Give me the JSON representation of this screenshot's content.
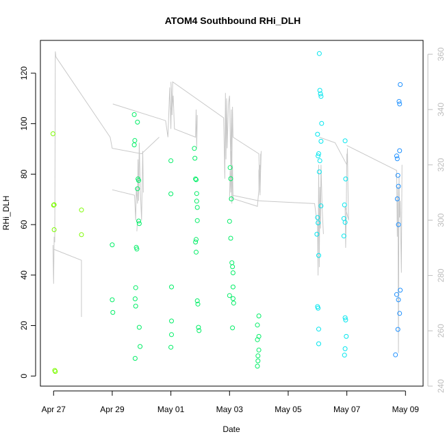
{
  "chart_data": {
    "type": "scatter",
    "title": "ATOM4 Southbound RHi_DLH",
    "xlabel": "Date",
    "ylabel": "RHi_DLH",
    "x_unit": "days since Apr 27",
    "xlim": [
      -0.45,
      12.6
    ],
    "ylim": [
      -4,
      133
    ],
    "x_ticks": [
      {
        "value": 0,
        "label": "Apr 27"
      },
      {
        "value": 2,
        "label": "Apr 29"
      },
      {
        "value": 4,
        "label": "May 01"
      },
      {
        "value": 6,
        "label": "May 03"
      },
      {
        "value": 8,
        "label": "May 05"
      },
      {
        "value": 10,
        "label": "May 07"
      },
      {
        "value": 12,
        "label": "May 09"
      }
    ],
    "y_ticks": [
      0,
      20,
      40,
      60,
      80,
      100,
      120
    ],
    "y2_axis": {
      "label": "",
      "color": "#bdbdbd",
      "lim": [
        240,
        365
      ],
      "ticks": [
        240,
        260,
        280,
        300,
        320,
        340,
        360
      ]
    },
    "colors": {
      "early": "#7cfc00",
      "mid": "#00ee66",
      "late": "#00e5ee",
      "last": "#1e90ff",
      "line": "#c8c8c8"
    },
    "series": [
      {
        "name": "RHi_DLH",
        "points": [
          [
            -0.02,
            96
          ],
          [
            0.0,
            67.7
          ],
          [
            0.02,
            67.9
          ],
          [
            0.02,
            58
          ],
          [
            0.04,
            2.2
          ],
          [
            0.06,
            1.8
          ],
          [
            0.95,
            65.8
          ],
          [
            0.95,
            56
          ],
          [
            2.0,
            52
          ],
          [
            2.0,
            30.2
          ],
          [
            2.02,
            25.2
          ],
          [
            2.75,
            103.6
          ],
          [
            2.77,
            93.3
          ],
          [
            2.75,
            91.6
          ],
          [
            2.78,
            30.6
          ],
          [
            2.8,
            27.7
          ],
          [
            2.78,
            7
          ],
          [
            2.8,
            35
          ],
          [
            2.82,
            51
          ],
          [
            2.84,
            50.3
          ],
          [
            2.86,
            100.6
          ],
          [
            2.86,
            74.2
          ],
          [
            2.88,
            78.1
          ],
          [
            2.9,
            77.5
          ],
          [
            2.9,
            61.4
          ],
          [
            2.92,
            60.4
          ],
          [
            2.92,
            19.3
          ],
          [
            2.95,
            11.7
          ],
          [
            4.0,
            85.3
          ],
          [
            4.0,
            72.2
          ],
          [
            4.02,
            35.3
          ],
          [
            4.02,
            21.8
          ],
          [
            4.02,
            16.4
          ],
          [
            4.0,
            11.4
          ],
          [
            4.8,
            90.2
          ],
          [
            4.82,
            86.3
          ],
          [
            4.84,
            78.1
          ],
          [
            4.86,
            77.8
          ],
          [
            4.88,
            72.3
          ],
          [
            4.88,
            69.3
          ],
          [
            4.9,
            66.8
          ],
          [
            4.9,
            61.6
          ],
          [
            4.84,
            53.1
          ],
          [
            4.86,
            54.1
          ],
          [
            4.86,
            49.1
          ],
          [
            4.9,
            29.8
          ],
          [
            4.92,
            28.5
          ],
          [
            4.94,
            19.3
          ],
          [
            4.96,
            18
          ],
          [
            6.02,
            82.6
          ],
          [
            6.04,
            78.2
          ],
          [
            6.06,
            70.2
          ],
          [
            6.0,
            61.3
          ],
          [
            6.04,
            54.6
          ],
          [
            6.08,
            44.9
          ],
          [
            6.1,
            43.3
          ],
          [
            6.12,
            40.9
          ],
          [
            6.12,
            35.3
          ],
          [
            6.0,
            31.9
          ],
          [
            6.12,
            30.7
          ],
          [
            6.14,
            28.9
          ],
          [
            6.1,
            19.1
          ],
          [
            6.95,
            20.2
          ],
          [
            6.95,
            14.4
          ],
          [
            7.0,
            15.7
          ],
          [
            7.0,
            23.8
          ],
          [
            7.0,
            10.3
          ],
          [
            6.97,
            8
          ],
          [
            6.97,
            6
          ],
          [
            6.95,
            3.9
          ],
          [
            9.0,
            95.8
          ],
          [
            9.02,
            87.2
          ],
          [
            9.04,
            88.1
          ],
          [
            9.06,
            80.9
          ],
          [
            9.08,
            85.3
          ],
          [
            9.12,
            93
          ],
          [
            9.12,
            67.4
          ],
          [
            9.0,
            62.8
          ],
          [
            9.02,
            60.7
          ],
          [
            8.98,
            56.2
          ],
          [
            9.04,
            47.8
          ],
          [
            9.0,
            27.5
          ],
          [
            9.02,
            26.9
          ],
          [
            9.04,
            18.6
          ],
          [
            9.04,
            12.8
          ],
          [
            9.06,
            127.8
          ],
          [
            9.08,
            113.2
          ],
          [
            9.1,
            111.8
          ],
          [
            9.12,
            110.8
          ],
          [
            9.14,
            100.1
          ],
          [
            9.94,
            93.2
          ],
          [
            9.96,
            78.1
          ],
          [
            9.92,
            67.8
          ],
          [
            9.9,
            62.4
          ],
          [
            9.94,
            60.9
          ],
          [
            9.9,
            55.5
          ],
          [
            9.94,
            23.1
          ],
          [
            9.96,
            22.2
          ],
          [
            9.98,
            15.7
          ],
          [
            9.94,
            10.8
          ],
          [
            9.92,
            8.3
          ],
          [
            11.7,
            87.2
          ],
          [
            11.72,
            86.1
          ],
          [
            11.74,
            79.5
          ],
          [
            11.76,
            75.2
          ],
          [
            11.72,
            70.2
          ],
          [
            11.76,
            60
          ],
          [
            11.78,
            108.8
          ],
          [
            11.8,
            107.8
          ],
          [
            11.82,
            115.5
          ],
          [
            11.8,
            89.3
          ],
          [
            11.82,
            34
          ],
          [
            11.7,
            32.3
          ],
          [
            11.76,
            30.2
          ],
          [
            11.8,
            24.8
          ],
          [
            11.74,
            18.5
          ],
          [
            11.66,
            8.4
          ]
        ]
      }
    ],
    "line_series": {
      "name": "secondary (grey)",
      "axis": "y2",
      "segments": [
        [
          [
            -0.02,
            291
          ],
          [
            -0.01,
            284
          ],
          [
            0.0,
            277
          ],
          [
            0.02,
            294
          ],
          [
            0.04,
            292
          ],
          [
            0.06,
            361
          ],
          [
            0.08,
            359
          ],
          [
            1.93,
            330
          ],
          [
            2.0,
            326
          ],
          [
            3.0,
            324
          ],
          [
            3.6,
            330
          ]
        ],
        [
          [
            0.0,
            289.5
          ],
          [
            0.95,
            285.5
          ],
          [
            0.95,
            265
          ]
        ],
        [
          [
            2.02,
            342
          ],
          [
            3.82,
            336
          ],
          [
            3.9,
            330
          ],
          [
            3.96,
            348
          ],
          [
            4.0,
            333
          ],
          [
            4.02,
            346
          ],
          [
            4.04,
            338
          ],
          [
            4.06,
            350
          ],
          [
            5.8,
            337
          ],
          [
            5.84,
            315
          ],
          [
            5.86,
            346
          ],
          [
            5.88,
            322
          ],
          [
            5.9,
            344
          ],
          [
            5.92,
            326
          ],
          [
            5.96,
            342
          ],
          [
            6.0,
            345
          ],
          [
            6.04,
            320
          ],
          [
            6.06,
            340
          ],
          [
            6.08,
            320
          ],
          [
            6.1,
            341
          ],
          [
            6.12,
            330
          ],
          [
            7.0,
            324
          ],
          [
            7.04,
            309
          ],
          [
            7.06,
            324
          ]
        ],
        [
          [
            2.0,
            311
          ],
          [
            2.76,
            309
          ],
          [
            2.8,
            300
          ],
          [
            2.82,
            312
          ],
          [
            2.86,
            306
          ],
          [
            2.88,
            322
          ],
          [
            2.9,
            307
          ],
          [
            2.92,
            328
          ],
          [
            2.96,
            310
          ],
          [
            3.0,
            300
          ],
          [
            3.04,
            325
          ],
          [
            3.06,
            310
          ]
        ],
        [
          [
            2.84,
            296
          ],
          [
            2.86,
            300
          ]
        ],
        [
          [
            4.0,
            340
          ],
          [
            4.04,
            343
          ],
          [
            4.0,
            350
          ],
          [
            4.04,
            340
          ],
          [
            4.08,
            345
          ],
          [
            4.12,
            333
          ],
          [
            4.84,
            330
          ],
          [
            4.86,
            340
          ],
          [
            4.88,
            326
          ],
          [
            4.9,
            338
          ]
        ],
        [
          [
            6.0,
            307
          ],
          [
            6.02,
            318
          ],
          [
            6.04,
            310
          ],
          [
            6.06,
            325
          ],
          [
            6.08,
            306
          ],
          [
            6.1,
            320
          ],
          [
            6.12,
            308
          ]
        ],
        [
          [
            6.06,
            308
          ],
          [
            6.95,
            305
          ],
          [
            7.0,
            311
          ],
          [
            7.0,
            318
          ],
          [
            7.04,
            320
          ],
          [
            7.04,
            310
          ],
          [
            7.08,
            325
          ]
        ],
        [
          [
            6.1,
            309
          ],
          [
            7.0,
            307
          ],
          [
            8.9,
            306
          ],
          [
            9.0,
            298
          ],
          [
            9.02,
            280
          ],
          [
            9.04,
            320
          ],
          [
            9.06,
            283
          ],
          [
            9.08,
            312
          ],
          [
            9.1,
            297
          ],
          [
            9.12,
            320
          ],
          [
            9.16,
            304
          ],
          [
            9.2,
            295
          ]
        ],
        [
          [
            9.06,
            330
          ],
          [
            9.6,
            328
          ],
          [
            10.0,
            320
          ],
          [
            10.02,
            326
          ],
          [
            10.04,
            311
          ],
          [
            10.06,
            300
          ],
          [
            9.94,
            305
          ],
          [
            9.96,
            290
          ],
          [
            9.98,
            302
          ],
          [
            10.0,
            324
          ]
        ],
        [
          [
            10.0,
            327
          ],
          [
            11.7,
            318
          ],
          [
            11.72,
            294
          ],
          [
            11.74,
            312
          ],
          [
            11.76,
            252
          ],
          [
            11.78,
            316
          ],
          [
            11.8,
            301
          ],
          [
            11.82,
            307
          ],
          [
            11.84,
            294
          ],
          [
            11.86,
            281
          ],
          [
            11.88,
            320
          ]
        ]
      ]
    }
  }
}
